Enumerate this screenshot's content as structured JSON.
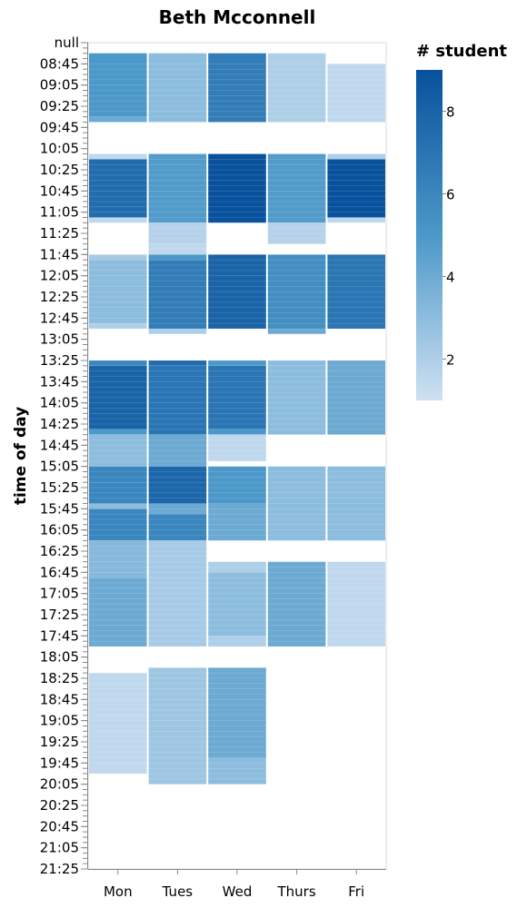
{
  "chart_data": {
    "type": "heatmap",
    "title": "Beth Mcconnell",
    "ylabel": "time of day",
    "xlabel": "",
    "categories": [
      "Mon",
      "Tues",
      "Wed",
      "Thurs",
      "Fri"
    ],
    "y_tick_labels": [
      "null",
      "08:45",
      "09:05",
      "09:25",
      "09:45",
      "10:05",
      "10:25",
      "10:45",
      "11:05",
      "11:25",
      "11:45",
      "12:05",
      "12:25",
      "12:45",
      "13:05",
      "13:25",
      "13:45",
      "14:05",
      "14:25",
      "14:45",
      "15:05",
      "15:25",
      "15:45",
      "16:05",
      "16:25",
      "16:45",
      "17:05",
      "17:25",
      "17:45",
      "18:05",
      "18:25",
      "18:45",
      "19:05",
      "19:25",
      "19:45",
      "20:05",
      "20:25",
      "20:45",
      "21:05",
      "21:25"
    ],
    "y_domain": [
      "null",
      "21:25"
    ],
    "y_minutes_per_tick": 20,
    "color_scale": {
      "title": "# student",
      "domain": [
        1,
        9
      ],
      "range": [
        "#cfe1f2",
        "#08519c"
      ],
      "ticks": [
        2,
        4,
        6,
        8
      ],
      "scheme": "blues"
    },
    "grid": false,
    "legend": "right",
    "cells": [
      {
        "day": "Mon",
        "start": "08:35",
        "end": "09:35",
        "value": 5
      },
      {
        "day": "Mon",
        "start": "09:35",
        "end": "09:40",
        "value": 4
      },
      {
        "day": "Mon",
        "start": "10:10",
        "end": "10:15",
        "value": 1.5
      },
      {
        "day": "Mon",
        "start": "10:15",
        "end": "11:10",
        "value": 7.5
      },
      {
        "day": "Mon",
        "start": "11:10",
        "end": "11:15",
        "value": 1.5
      },
      {
        "day": "Mon",
        "start": "11:45",
        "end": "11:50",
        "value": 2.2
      },
      {
        "day": "Mon",
        "start": "11:50",
        "end": "12:50",
        "value": 3
      },
      {
        "day": "Mon",
        "start": "12:50",
        "end": "12:55",
        "value": 2
      },
      {
        "day": "Mon",
        "start": "13:25",
        "end": "13:30",
        "value": 6
      },
      {
        "day": "Mon",
        "start": "13:30",
        "end": "14:30",
        "value": 8
      },
      {
        "day": "Mon",
        "start": "14:30",
        "end": "14:35",
        "value": 5
      },
      {
        "day": "Mon",
        "start": "14:35",
        "end": "15:05",
        "value": 3
      },
      {
        "day": "Mon",
        "start": "15:05",
        "end": "15:20",
        "value": 6
      },
      {
        "day": "Mon",
        "start": "15:20",
        "end": "15:40",
        "value": 6
      },
      {
        "day": "Mon",
        "start": "15:40",
        "end": "15:45",
        "value": 3
      },
      {
        "day": "Mon",
        "start": "15:45",
        "end": "16:15",
        "value": 6
      },
      {
        "day": "Mon",
        "start": "16:15",
        "end": "16:50",
        "value": 3.2
      },
      {
        "day": "Mon",
        "start": "16:50",
        "end": "17:55",
        "value": 4
      },
      {
        "day": "Mon",
        "start": "18:20",
        "end": "19:55",
        "value": 1.5
      },
      {
        "day": "Tues",
        "start": "08:35",
        "end": "09:40",
        "value": 3
      },
      {
        "day": "Tues",
        "start": "10:10",
        "end": "11:15",
        "value": 4.8
      },
      {
        "day": "Tues",
        "start": "11:15",
        "end": "11:35",
        "value": 1.8
      },
      {
        "day": "Tues",
        "start": "11:35",
        "end": "11:45",
        "value": 1.5
      },
      {
        "day": "Tues",
        "start": "11:45",
        "end": "11:50",
        "value": 5
      },
      {
        "day": "Tues",
        "start": "11:50",
        "end": "12:55",
        "value": 6.5
      },
      {
        "day": "Tues",
        "start": "12:55",
        "end": "13:00",
        "value": 2
      },
      {
        "day": "Tues",
        "start": "13:25",
        "end": "13:30",
        "value": 7.5
      },
      {
        "day": "Tues",
        "start": "13:30",
        "end": "14:35",
        "value": 7
      },
      {
        "day": "Tues",
        "start": "14:35",
        "end": "15:05",
        "value": 4
      },
      {
        "day": "Tues",
        "start": "15:05",
        "end": "15:40",
        "value": 7.8
      },
      {
        "day": "Tues",
        "start": "15:40",
        "end": "15:50",
        "value": 4
      },
      {
        "day": "Tues",
        "start": "15:50",
        "end": "16:15",
        "value": 6
      },
      {
        "day": "Tues",
        "start": "16:15",
        "end": "16:30",
        "value": 2.2
      },
      {
        "day": "Tues",
        "start": "16:30",
        "end": "17:55",
        "value": 2.2
      },
      {
        "day": "Tues",
        "start": "18:15",
        "end": "20:05",
        "value": 2.5
      },
      {
        "day": "Wed",
        "start": "08:35",
        "end": "09:40",
        "value": 6.5
      },
      {
        "day": "Wed",
        "start": "10:10",
        "end": "11:15",
        "value": 9
      },
      {
        "day": "Wed",
        "start": "11:45",
        "end": "12:55",
        "value": 8
      },
      {
        "day": "Wed",
        "start": "13:25",
        "end": "13:30",
        "value": 5
      },
      {
        "day": "Wed",
        "start": "13:30",
        "end": "14:30",
        "value": 7
      },
      {
        "day": "Wed",
        "start": "14:30",
        "end": "14:35",
        "value": 5
      },
      {
        "day": "Wed",
        "start": "14:35",
        "end": "15:00",
        "value": 1.5
      },
      {
        "day": "Wed",
        "start": "15:05",
        "end": "15:40",
        "value": 5
      },
      {
        "day": "Wed",
        "start": "15:40",
        "end": "16:15",
        "value": 4
      },
      {
        "day": "Wed",
        "start": "16:35",
        "end": "16:45",
        "value": 2
      },
      {
        "day": "Wed",
        "start": "16:45",
        "end": "17:45",
        "value": 3
      },
      {
        "day": "Wed",
        "start": "17:45",
        "end": "17:55",
        "value": 2
      },
      {
        "day": "Wed",
        "start": "18:15",
        "end": "19:40",
        "value": 4
      },
      {
        "day": "Wed",
        "start": "19:40",
        "end": "20:05",
        "value": 3
      },
      {
        "day": "Thurs",
        "start": "08:35",
        "end": "09:40",
        "value": 2
      },
      {
        "day": "Thurs",
        "start": "10:10",
        "end": "11:15",
        "value": 4.8
      },
      {
        "day": "Thurs",
        "start": "11:15",
        "end": "11:35",
        "value": 1.8
      },
      {
        "day": "Thurs",
        "start": "11:45",
        "end": "12:55",
        "value": 5.5
      },
      {
        "day": "Thurs",
        "start": "12:55",
        "end": "13:00",
        "value": 4
      },
      {
        "day": "Thurs",
        "start": "13:25",
        "end": "14:35",
        "value": 3
      },
      {
        "day": "Thurs",
        "start": "15:05",
        "end": "16:15",
        "value": 3
      },
      {
        "day": "Thurs",
        "start": "16:35",
        "end": "17:55",
        "value": 4
      },
      {
        "day": "Fri",
        "start": "08:45",
        "end": "09:40",
        "value": 1.5
      },
      {
        "day": "Fri",
        "start": "10:10",
        "end": "10:15",
        "value": 2
      },
      {
        "day": "Fri",
        "start": "10:15",
        "end": "11:10",
        "value": 9
      },
      {
        "day": "Fri",
        "start": "11:10",
        "end": "11:15",
        "value": 1.5
      },
      {
        "day": "Fri",
        "start": "11:45",
        "end": "12:55",
        "value": 7
      },
      {
        "day": "Fri",
        "start": "13:25",
        "end": "14:35",
        "value": 4
      },
      {
        "day": "Fri",
        "start": "15:05",
        "end": "16:15",
        "value": 3
      },
      {
        "day": "Fri",
        "start": "16:35",
        "end": "17:55",
        "value": 1.5
      }
    ]
  }
}
